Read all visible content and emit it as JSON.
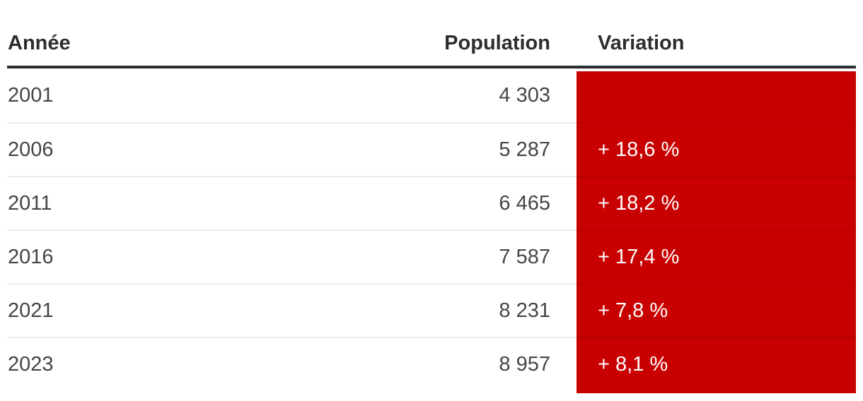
{
  "table": {
    "columns": [
      {
        "label": "Année",
        "align": "left"
      },
      {
        "label": "Population",
        "align": "right"
      },
      {
        "label": "Variation",
        "align": "left"
      }
    ],
    "rows": [
      {
        "year": "2001",
        "population": "4 303",
        "variation": ""
      },
      {
        "year": "2006",
        "population": "5 287",
        "variation": "+ 18,6 %"
      },
      {
        "year": "2011",
        "population": "6 465",
        "variation": "+ 18,2 %"
      },
      {
        "year": "2016",
        "population": "7 587",
        "variation": "+ 17,4 %"
      },
      {
        "year": "2021",
        "population": "8 231",
        "variation": "+ 7,8 %"
      },
      {
        "year": "2023",
        "population": "8 957",
        "variation": "+ 8,1 %"
      }
    ],
    "colors": {
      "variation_bg": "#c90000",
      "variation_text": "#ffffff",
      "header_rule": "#2b2b2b",
      "header_text": "#2d2d2d",
      "data_text": "#454545",
      "row_separator": "rgba(0,0,0,0.08)",
      "background": "#ffffff"
    }
  },
  "chart_data": {
    "type": "table",
    "title": "",
    "columns": [
      "Année",
      "Population",
      "Variation"
    ],
    "rows": [
      [
        "2001",
        "4 303",
        ""
      ],
      [
        "2006",
        "5 287",
        "+ 18,6 %"
      ],
      [
        "2011",
        "6 465",
        "+ 18,2 %"
      ],
      [
        "2016",
        "7 587",
        "+ 17,4 %"
      ],
      [
        "2021",
        "8 231",
        "+ 7,8 %"
      ],
      [
        "2023",
        "8 957",
        "+ 8,1 %"
      ]
    ],
    "numeric": {
      "years": [
        2001,
        2006,
        2011,
        2016,
        2021,
        2023
      ],
      "population": [
        4303,
        5287,
        6465,
        7587,
        8231,
        8957
      ],
      "variation_pct": [
        null,
        18.6,
        18.2,
        17.4,
        7.8,
        8.1
      ]
    },
    "notes": "French-formatted population table; Variation column has solid red background with white text; first year has no variation value."
  }
}
